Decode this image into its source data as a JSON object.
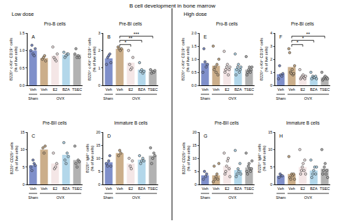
{
  "title": "B cell development in bone marrow",
  "sections": [
    "Low dose",
    "High dose"
  ],
  "chart_data": [
    {
      "type": "bar",
      "label": "A",
      "title": "Pro-B cells",
      "y_label": "B220⁺ c-Kit⁺ CD19⁻ cells\n(% of live cells)",
      "categories": [
        "Veh",
        "Veh",
        "E2",
        "BZA",
        "TSEC"
      ],
      "groups": [
        {
          "label": "Sham",
          "first": 0,
          "last": 0
        },
        {
          "label": "OVX",
          "first": 1,
          "last": 4
        }
      ],
      "colors": [
        "#7f8fca",
        "#cbae8a",
        "#f4e6e6",
        "#b3d7ea",
        "#b2b2b2"
      ],
      "values": [
        1.0,
        0.78,
        0.85,
        0.88,
        0.88
      ],
      "points": [
        [
          1.0,
          1.15,
          0.9,
          0.85,
          1.05
        ],
        [
          0.75,
          0.8,
          0.85,
          0.7
        ],
        [
          1.1,
          0.8,
          0.75,
          0.7,
          0.9
        ],
        [
          0.95,
          0.8,
          0.85,
          0.9,
          0.9
        ],
        [
          0.9,
          1.05,
          0.8,
          0.85,
          0.8
        ]
      ],
      "ylim": [
        0,
        1.5
      ],
      "yticks": [
        {
          "value": 0,
          "label": "0.0"
        },
        0.5,
        {
          "value": 1,
          "label": "1.0"
        },
        1.5
      ],
      "grid": false
    },
    {
      "type": "bar",
      "label": "B",
      "title": "Pre-BI cells",
      "y_label": "B220⁺ c-Kit⁺ CD19⁺ cells\n(% of live cells)",
      "categories": [
        "Veh",
        "Veh",
        "E2",
        "BZA",
        "TSEC"
      ],
      "groups": [
        {
          "label": "Sham",
          "first": 0,
          "last": 0
        },
        {
          "label": "OVX",
          "first": 1,
          "last": 4
        }
      ],
      "colors": [
        "#7f8fca",
        "#cbae8a",
        "#f4e6e6",
        "#b3d7ea",
        "#b2b2b2"
      ],
      "values": [
        1.55,
        2.1,
        1.3,
        0.9,
        0.8
      ],
      "points": [
        [
          1.2,
          1.6,
          1.7,
          1.8,
          1.3
        ],
        [
          2.2,
          2.1,
          2.0,
          2.1
        ],
        [
          2.0,
          1.2,
          0.9,
          1.0,
          1.6
        ],
        [
          1.3,
          0.8,
          0.9,
          0.7,
          0.8
        ],
        [
          0.9,
          0.7,
          0.8,
          0.75,
          0.85
        ]
      ],
      "significance": [
        {
          "from": 1,
          "to": 2,
          "label": "*"
        },
        {
          "from": 1,
          "to": 3,
          "label": "**"
        },
        {
          "from": 1,
          "to": 4,
          "label": "***"
        }
      ],
      "ylim": [
        0,
        3
      ],
      "yticks": [
        0,
        1,
        2,
        3
      ],
      "grid": false
    },
    {
      "type": "bar",
      "label": "C",
      "title": "Pre-BII cells",
      "y_label": "B220⁺ CD25⁺ cells\n(% of live cells)",
      "categories": [
        "Veh",
        "Veh",
        "E2",
        "BZA",
        "TSEC"
      ],
      "groups": [
        {
          "label": "Sham",
          "first": 0,
          "last": 0
        },
        {
          "label": "OVX",
          "first": 1,
          "last": 4
        }
      ],
      "colors": [
        "#7f8fca",
        "#cbae8a",
        "#f4e6e6",
        "#b3d7ea",
        "#b2b2b2"
      ],
      "values": [
        5.5,
        10,
        6,
        8.5,
        7
      ],
      "points": [
        [
          5,
          4,
          7,
          6,
          5.5
        ],
        [
          10.5,
          9,
          11
        ],
        [
          9,
          4.5,
          5,
          6
        ],
        [
          12,
          7,
          6,
          9,
          8
        ],
        [
          11,
          6,
          5,
          7,
          6.5
        ]
      ],
      "ylim": [
        0,
        15
      ],
      "yticks": [
        0,
        5,
        10,
        15
      ],
      "grid": false
    },
    {
      "type": "bar",
      "label": "D",
      "title": "Immature B cells",
      "y_label": "B220⁺ IgM⁺ cells\n(% of live cells)",
      "categories": [
        "Veh",
        "Veh",
        "E2",
        "BZA",
        "TSEC"
      ],
      "groups": [
        {
          "label": "Sham",
          "first": 0,
          "last": 0
        },
        {
          "label": "OVX",
          "first": 1,
          "last": 4
        }
      ],
      "colors": [
        "#7f8fca",
        "#cbae8a",
        "#f4e6e6",
        "#b3d7ea",
        "#b2b2b2"
      ],
      "values": [
        8.5,
        12,
        8,
        9.5,
        11
      ],
      "points": [
        [
          8,
          7,
          9,
          11,
          7
        ],
        [
          11,
          13,
          12
        ],
        [
          10,
          7,
          6,
          9
        ],
        [
          11,
          8,
          9,
          10,
          9
        ],
        [
          14,
          8,
          10,
          12,
          11
        ]
      ],
      "ylim": [
        0,
        20
      ],
      "yticks": [
        0,
        5,
        10,
        15,
        20
      ],
      "grid": false
    },
    {
      "type": "bar",
      "label": "E",
      "title": "Pro-B cells",
      "y_label": "B220⁺ c-Kit⁺ CD19⁻ cells\n(% of live cells)",
      "categories": [
        "Veh",
        "Veh",
        "E2",
        "BZA",
        "TSEC"
      ],
      "groups": [
        {
          "label": "Sham",
          "first": 0,
          "last": 0
        },
        {
          "label": "OVX",
          "first": 1,
          "last": 4
        }
      ],
      "colors": [
        "#7f8fca",
        "#cbae8a",
        "#f4e6e6",
        "#b3d7ea",
        "#b2b2b2"
      ],
      "values": [
        0.85,
        0.75,
        0.65,
        0.65,
        0.6
      ],
      "points": [
        [
          0.5,
          1.4,
          0.9,
          0.7,
          0.8
        ],
        [
          1.5,
          0.6,
          0.7,
          0.5,
          0.8,
          0.4,
          1.0
        ],
        [
          1.3,
          0.5,
          0.6,
          0.7,
          0.8,
          0.4,
          0.6,
          0.7
        ],
        [
          1.2,
          0.4,
          0.6,
          0.7,
          0.8,
          0.5,
          0.6,
          0.7
        ],
        [
          1.1,
          0.4,
          0.5,
          0.6,
          0.7,
          0.5,
          0.6,
          0.7
        ]
      ],
      "ylim": [
        0,
        2
      ],
      "yticks": [
        {
          "value": 0,
          "label": "0.0"
        },
        0.5,
        {
          "value": 1,
          "label": "1.0"
        },
        1.5,
        {
          "value": 2,
          "label": "2.0"
        }
      ],
      "grid": false
    },
    {
      "type": "bar",
      "label": "F",
      "title": "Pre-BI cells",
      "y_label": "B220⁺ c-Kit⁺ CD19⁺ cells\n(% of live cells)",
      "categories": [
        "Veh",
        "Veh",
        "E2",
        "BZA",
        "TSEC"
      ],
      "groups": [
        {
          "label": "Sham",
          "first": 0,
          "last": 0
        },
        {
          "label": "OVX",
          "first": 1,
          "last": 4
        }
      ],
      "colors": [
        "#7f8fca",
        "#cbae8a",
        "#f4e6e6",
        "#b3d7ea",
        "#b2b2b2"
      ],
      "values": [
        0.85,
        1.4,
        0.7,
        0.65,
        0.6
      ],
      "points": [
        [
          0.5,
          1.5,
          0.8,
          0.7,
          0.9
        ],
        [
          2.8,
          2.5,
          1.0,
          0.9,
          1.2,
          0.8,
          0.9,
          1.5
        ],
        [
          1.2,
          0.5,
          0.6,
          0.7,
          0.8,
          0.6,
          0.5,
          0.7
        ],
        [
          1.0,
          0.5,
          0.7,
          0.6,
          0.6,
          0.7,
          0.5
        ],
        [
          1.0,
          0.4,
          0.5,
          0.6,
          0.7,
          0.5,
          0.6,
          0.5
        ]
      ],
      "significance": [
        {
          "from": 1,
          "to": 2,
          "label": "*"
        },
        {
          "from": 1,
          "to": 3,
          "label": "*"
        },
        {
          "from": 1,
          "to": 4,
          "label": "**"
        }
      ],
      "ylim": [
        0,
        4
      ],
      "yticks": [
        0,
        1,
        2,
        3,
        4
      ],
      "grid": false
    },
    {
      "type": "bar",
      "label": "G",
      "title": "Pre-BII cells",
      "y_label": "B220⁺ CD25⁺ cells\n(% of live cells)",
      "categories": [
        "Veh",
        "Veh",
        "E2",
        "BZA",
        "TSEC"
      ],
      "groups": [
        {
          "label": "Sham",
          "first": 0,
          "last": 0
        },
        {
          "label": "OVX",
          "first": 1,
          "last": 4
        }
      ],
      "colors": [
        "#7f8fca",
        "#cbae8a",
        "#f4e6e6",
        "#b3d7ea",
        "#b2b2b2"
      ],
      "values": [
        3.5,
        3.5,
        7,
        5.5,
        6.5
      ],
      "points": [
        [
          2,
          5,
          3,
          4
        ],
        [
          1,
          7,
          2,
          3,
          4,
          2,
          8
        ],
        [
          12,
          4,
          5,
          7,
          9,
          10,
          6,
          3
        ],
        [
          13,
          3,
          4,
          6,
          5,
          8,
          4
        ],
        [
          12,
          5,
          4,
          7,
          8,
          6,
          5,
          6,
          9
        ]
      ],
      "ylim": [
        0,
        20
      ],
      "yticks": [
        0,
        5,
        10,
        15,
        20
      ],
      "grid": false
    },
    {
      "type": "bar",
      "label": "H",
      "title": "Immature B cells",
      "y_label": "B220⁺ IgM⁺ cells\n(% of live cells)",
      "categories": [
        "Veh",
        "Veh",
        "E2",
        "BZA",
        "TSEC"
      ],
      "groups": [
        {
          "label": "Sham",
          "first": 0,
          "last": 0
        },
        {
          "label": "OVX",
          "first": 1,
          "last": 4
        }
      ],
      "colors": [
        "#7f8fca",
        "#cbae8a",
        "#f4e6e6",
        "#b3d7ea",
        "#b2b2b2"
      ],
      "values": [
        2.5,
        3,
        5,
        4,
        4.5
      ],
      "points": [
        [
          2,
          3,
          2.5,
          2.5
        ],
        [
          8,
          2,
          1.5,
          3,
          2.5,
          3,
          1.5
        ],
        [
          10,
          3,
          4,
          5,
          6,
          4,
          7,
          3
        ],
        [
          7,
          2,
          3,
          4,
          5,
          3,
          5
        ],
        [
          10,
          3,
          4,
          5,
          6,
          3,
          4,
          2
        ]
      ],
      "ylim": [
        0,
        15
      ],
      "yticks": [
        0,
        5,
        10,
        15
      ],
      "grid": false
    }
  ]
}
